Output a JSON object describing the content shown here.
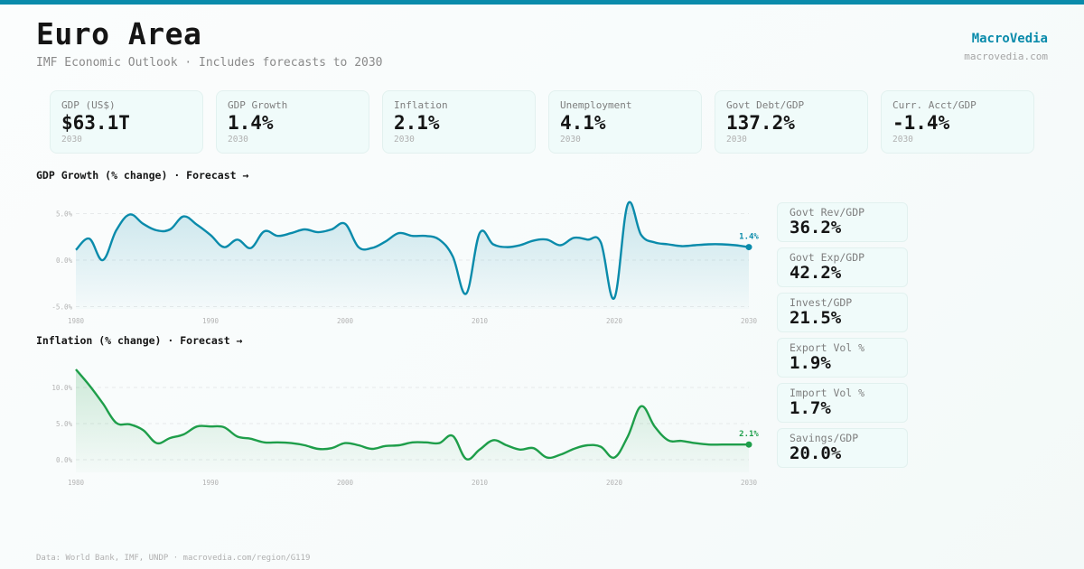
{
  "header": {
    "title": "Euro Area",
    "subtitle": "IMF Economic Outlook · Includes forecasts to 2030",
    "brand": "MacroVedia",
    "brand_url": "macrovedia.com"
  },
  "colors": {
    "accent": "#0a8bab",
    "gdp_line": "#0a8bab",
    "inflation_line": "#1e9e4a"
  },
  "kpis": [
    {
      "label": "GDP (US$)",
      "value": "$63.1T",
      "year": "2030"
    },
    {
      "label": "GDP Growth",
      "value": "1.4%",
      "year": "2030"
    },
    {
      "label": "Inflation",
      "value": "2.1%",
      "year": "2030"
    },
    {
      "label": "Unemployment",
      "value": "4.1%",
      "year": "2030"
    },
    {
      "label": "Govt Debt/GDP",
      "value": "137.2%",
      "year": "2030"
    },
    {
      "label": "Curr. Acct/GDP",
      "value": "-1.4%",
      "year": "2030"
    }
  ],
  "side_stats": [
    {
      "label": "Govt Rev/GDP",
      "value": "36.2%"
    },
    {
      "label": "Govt Exp/GDP",
      "value": "42.2%"
    },
    {
      "label": "Invest/GDP",
      "value": "21.5%"
    },
    {
      "label": "Export Vol %",
      "value": "1.9%"
    },
    {
      "label": "Import Vol %",
      "value": "1.7%"
    },
    {
      "label": "Savings/GDP",
      "value": "20.0%"
    }
  ],
  "footer": "Data: World Bank, IMF, UNDP · macrovedia.com/region/G119",
  "chart_data": [
    {
      "type": "area",
      "title": "GDP Growth (% change) · Forecast →",
      "xlabel": "",
      "ylabel": "",
      "x_ticks": [
        "1980",
        "1990",
        "2000",
        "2010",
        "2020",
        "2030"
      ],
      "y_ticks": [
        "5.0%",
        "0.0%",
        "-5.0%"
      ],
      "y_tick_values": [
        5,
        0,
        -5
      ],
      "xlim": [
        1980,
        2030
      ],
      "ylim": [
        -5,
        5
      ],
      "grid": true,
      "end_label": "1.4%",
      "x": [
        1980,
        1981,
        1982,
        1983,
        1984,
        1985,
        1986,
        1987,
        1988,
        1989,
        1990,
        1991,
        1992,
        1993,
        1994,
        1995,
        1996,
        1997,
        1998,
        1999,
        2000,
        2001,
        2002,
        2003,
        2004,
        2005,
        2006,
        2007,
        2008,
        2009,
        2010,
        2011,
        2012,
        2013,
        2014,
        2015,
        2016,
        2017,
        2018,
        2019,
        2020,
        2021,
        2022,
        2023,
        2024,
        2025,
        2026,
        2027,
        2028,
        2029,
        2030
      ],
      "values": [
        1.1,
        2.3,
        0.0,
        3.2,
        4.9,
        3.9,
        3.2,
        3.3,
        4.7,
        3.8,
        2.7,
        1.4,
        2.2,
        1.3,
        3.1,
        2.6,
        2.9,
        3.3,
        3.0,
        3.3,
        3.9,
        1.4,
        1.3,
        2.0,
        2.9,
        2.6,
        2.6,
        2.2,
        0.4,
        -3.6,
        2.9,
        1.7,
        1.4,
        1.6,
        2.1,
        2.2,
        1.6,
        2.4,
        2.2,
        1.9,
        -4.1,
        6.0,
        2.7,
        1.9,
        1.7,
        1.5,
        1.6,
        1.7,
        1.7,
        1.6,
        1.4
      ]
    },
    {
      "type": "area",
      "title": "Inflation (% change) · Forecast →",
      "xlabel": "",
      "ylabel": "",
      "x_ticks": [
        "1980",
        "1990",
        "2000",
        "2010",
        "2020",
        "2030"
      ],
      "y_ticks": [
        "10.0%",
        "5.0%",
        "0.0%"
      ],
      "y_tick_values": [
        10,
        5,
        0
      ],
      "xlim": [
        1980,
        2030
      ],
      "ylim": [
        -1.5,
        13.5
      ],
      "grid": true,
      "end_label": "2.1%",
      "x": [
        1980,
        1981,
        1982,
        1983,
        1984,
        1985,
        1986,
        1987,
        1988,
        1989,
        1990,
        1991,
        1992,
        1993,
        1994,
        1995,
        1996,
        1997,
        1998,
        1999,
        2000,
        2001,
        2002,
        2003,
        2004,
        2005,
        2006,
        2007,
        2008,
        2009,
        2010,
        2011,
        2012,
        2013,
        2014,
        2015,
        2016,
        2017,
        2018,
        2019,
        2020,
        2021,
        2022,
        2023,
        2024,
        2025,
        2026,
        2027,
        2028,
        2029,
        2030
      ],
      "values": [
        12.5,
        10.3,
        7.8,
        5.1,
        4.9,
        4.1,
        2.3,
        3.0,
        3.5,
        4.6,
        4.6,
        4.5,
        3.2,
        2.9,
        2.4,
        2.4,
        2.3,
        2.0,
        1.5,
        1.6,
        2.3,
        2.0,
        1.5,
        1.9,
        2.0,
        2.4,
        2.4,
        2.3,
        3.3,
        0.1,
        1.4,
        2.7,
        2.0,
        1.4,
        1.6,
        0.3,
        0.7,
        1.5,
        2.0,
        1.8,
        0.3,
        3.2,
        7.4,
        4.6,
        2.7,
        2.6,
        2.3,
        2.1,
        2.1,
        2.1,
        2.1
      ]
    }
  ]
}
